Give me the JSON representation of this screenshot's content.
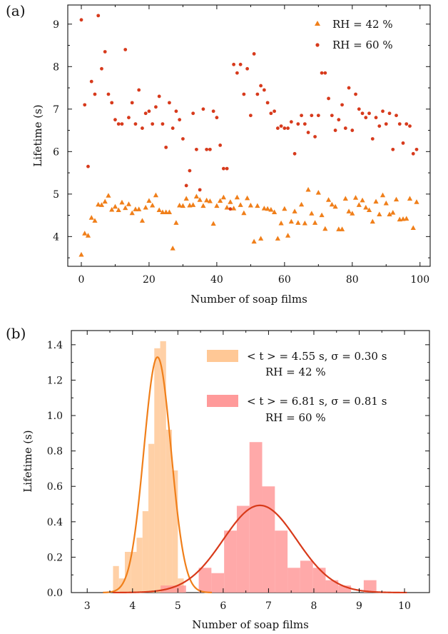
{
  "colors": {
    "rh42": "#f07f1a",
    "rh60": "#d73a1c",
    "hist42": "#ffc896",
    "hist60": "#ff9a9a",
    "fit42": "#f07f1a",
    "fit60": "#d83a1a"
  },
  "chart_data": [
    {
      "panel_label": "(a)",
      "type": "scatter",
      "xlabel": "Number of soap films",
      "ylabel": "Lifetime (s)",
      "xlim": [
        -4,
        103
      ],
      "ylim": [
        3.3,
        9.45
      ],
      "xticks": [
        0,
        20,
        40,
        60,
        80,
        100
      ],
      "yticks": [
        4,
        5,
        6,
        7,
        8,
        9
      ],
      "legend_position": "top-right",
      "series": [
        {
          "name": "RH = 42 %",
          "marker": "triangle",
          "color_key": "rh42",
          "x": [
            0,
            1,
            2,
            3,
            4,
            5,
            6,
            7,
            8,
            9,
            10,
            11,
            12,
            13,
            14,
            15,
            16,
            17,
            18,
            19,
            20,
            21,
            22,
            23,
            24,
            25,
            26,
            27,
            28,
            29,
            30,
            31,
            32,
            33,
            34,
            35,
            36,
            37,
            38,
            39,
            40,
            41,
            42,
            43,
            44,
            45,
            46,
            47,
            48,
            49,
            50,
            51,
            52,
            53,
            54,
            55,
            56,
            57,
            58,
            59,
            60,
            61,
            62,
            63,
            64,
            65,
            66,
            67,
            68,
            69,
            70,
            71,
            72,
            73,
            74,
            75,
            76,
            77,
            78,
            79,
            80,
            81,
            82,
            83,
            84,
            85,
            86,
            87,
            88,
            89,
            90,
            91,
            92,
            93,
            94,
            95,
            96,
            97,
            98,
            99
          ],
          "y": [
            3.57,
            4.07,
            4.02,
            4.44,
            4.37,
            4.75,
            4.74,
            4.82,
            4.96,
            4.63,
            4.7,
            4.62,
            4.8,
            4.67,
            4.76,
            4.55,
            4.64,
            4.64,
            4.37,
            4.68,
            4.84,
            4.73,
            4.97,
            4.62,
            4.57,
            4.57,
            4.57,
            3.72,
            4.32,
            4.73,
            4.72,
            4.89,
            4.73,
            4.74,
            4.94,
            4.86,
            4.72,
            4.85,
            4.83,
            4.3,
            4.72,
            4.84,
            4.92,
            4.68,
            4.81,
            4.66,
            4.92,
            4.74,
            4.55,
            4.9,
            4.73,
            3.88,
            4.72,
            3.95,
            4.66,
            4.65,
            4.63,
            4.57,
            3.95,
            4.31,
            4.65,
            4.02,
            4.35,
            4.59,
            4.32,
            4.75,
            4.31,
            5.1,
            4.54,
            4.32,
            5.03,
            4.5,
            4.18,
            4.86,
            4.75,
            4.7,
            4.17,
            4.17,
            4.89,
            4.59,
            4.54,
            4.91,
            4.74,
            4.85,
            4.68,
            4.62,
            4.35,
            4.82,
            4.52,
            4.97,
            4.78,
            4.52,
            4.56,
            4.87,
            4.4,
            4.41,
            4.42,
            4.89,
            4.2,
            4.81
          ]
        },
        {
          "name": "RH = 60 %",
          "marker": "circle",
          "color_key": "rh60",
          "x": [
            0,
            1,
            2,
            3,
            4,
            5,
            6,
            7,
            8,
            9,
            10,
            11,
            12,
            13,
            14,
            15,
            16,
            17,
            18,
            19,
            20,
            21,
            22,
            23,
            24,
            25,
            26,
            27,
            28,
            29,
            30,
            31,
            32,
            33,
            34,
            35,
            36,
            37,
            38,
            39,
            40,
            41,
            42,
            43,
            44,
            45,
            46,
            47,
            48,
            49,
            50,
            51,
            52,
            53,
            54,
            55,
            56,
            57,
            58,
            59,
            60,
            61,
            62,
            63,
            64,
            65,
            66,
            67,
            68,
            69,
            70,
            71,
            72,
            73,
            74,
            75,
            76,
            77,
            78,
            79,
            80,
            81,
            82,
            83,
            84,
            85,
            86,
            87,
            88,
            89,
            90,
            91,
            92,
            93,
            94,
            95,
            96,
            97,
            98,
            99
          ],
          "y": [
            9.1,
            7.1,
            5.65,
            7.65,
            7.35,
            9.2,
            7.95,
            8.35,
            7.35,
            7.15,
            6.75,
            6.65,
            6.65,
            8.4,
            6.8,
            7.15,
            6.65,
            7.45,
            6.55,
            6.9,
            6.95,
            6.65,
            7.05,
            7.3,
            6.65,
            6.1,
            7.15,
            6.55,
            6.95,
            6.75,
            6.3,
            5.2,
            5.55,
            6.9,
            6.05,
            5.1,
            7.0,
            6.05,
            6.05,
            6.95,
            6.8,
            6.15,
            5.6,
            5.6,
            4.65,
            8.05,
            7.85,
            8.05,
            7.35,
            7.95,
            6.85,
            8.3,
            7.35,
            7.55,
            7.45,
            7.15,
            6.9,
            6.95,
            6.55,
            6.6,
            6.55,
            6.55,
            6.7,
            5.95,
            6.65,
            6.85,
            6.65,
            6.45,
            6.85,
            6.35,
            6.85,
            7.85,
            7.85,
            7.25,
            6.85,
            6.5,
            6.75,
            7.1,
            6.55,
            7.5,
            6.5,
            7.35,
            7.0,
            6.9,
            6.8,
            6.9,
            6.3,
            6.8,
            6.6,
            6.95,
            6.65,
            6.9,
            6.05,
            6.85,
            6.65,
            6.2,
            6.65,
            6.6,
            5.95,
            6.05
          ]
        }
      ]
    },
    {
      "panel_label": "(b)",
      "type": "bar",
      "xlabel": "Number of soap films",
      "ylabel": "Lifetime (s)",
      "xlim": [
        2.65,
        10.55
      ],
      "ylim": [
        0,
        1.48
      ],
      "xticks": [
        3,
        4,
        5,
        6,
        7,
        8,
        9,
        10
      ],
      "yticks": [
        0.0,
        0.2,
        0.4,
        0.6,
        0.8,
        1.0,
        1.2,
        1.4
      ],
      "ytick_labels": [
        "0.0",
        "0.2",
        "0.4",
        "0.6",
        "0.8",
        "1.0",
        "1.2",
        "1.4"
      ],
      "legend_position": "top-right",
      "series": [
        {
          "name": "< t > = 4.55 s, σ = 0.30 s",
          "name2": "RH = 42 %",
          "color_key": "hist42",
          "fit_color_key": "fit42",
          "mean": 4.55,
          "sigma": 0.3,
          "bin_edges": [
            3.57,
            3.7,
            3.83,
            3.96,
            4.09,
            4.22,
            4.35,
            4.48,
            4.61,
            4.74,
            4.87,
            5.0,
            5.13
          ],
          "values": [
            0.15,
            0.08,
            0.23,
            0.23,
            0.31,
            0.46,
            0.84,
            1.38,
            1.42,
            0.92,
            0.69,
            0.08
          ]
        },
        {
          "name": "< t > = 6.81 s, σ = 0.81 s",
          "name2": "RH = 60 %",
          "color_key": "hist60",
          "fit_color_key": "fit60",
          "mean": 6.81,
          "sigma": 0.81,
          "bin_edges": [
            4.62,
            4.9,
            5.18,
            5.46,
            5.74,
            6.02,
            6.3,
            6.58,
            6.86,
            7.14,
            7.42,
            7.7,
            7.98,
            8.26,
            8.54,
            8.82,
            9.1,
            9.38
          ],
          "values": [
            0.04,
            0.04,
            0.0,
            0.14,
            0.11,
            0.35,
            0.49,
            0.85,
            0.6,
            0.35,
            0.14,
            0.18,
            0.14,
            0.07,
            0.04,
            0.0,
            0.07
          ]
        }
      ]
    }
  ]
}
